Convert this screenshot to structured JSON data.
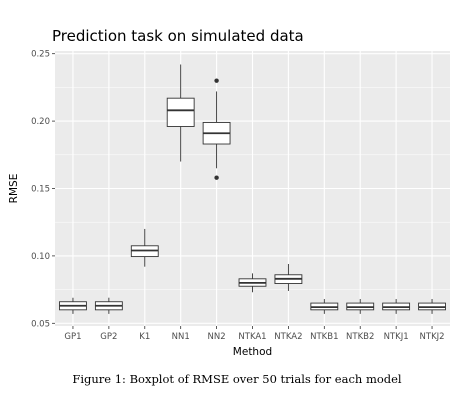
{
  "chart_data": {
    "type": "boxplot",
    "title": "Prediction task on simulated data",
    "xlabel": "Method",
    "ylabel": "RMSE",
    "ylim": [
      0.048,
      0.252
    ],
    "yticks": [
      0.05,
      0.1,
      0.15,
      0.2,
      0.25
    ],
    "ytick_labels": [
      "0.05",
      "0.10",
      "0.15",
      "0.20",
      "0.25"
    ],
    "grid": true,
    "categories": [
      "GP1",
      "GP2",
      "K1",
      "NN1",
      "NN2",
      "NTKA1",
      "NTKA2",
      "NTKB1",
      "NTKB2",
      "NTKJ1",
      "NTKJ2"
    ],
    "boxes": [
      {
        "whisker_low": 0.057,
        "q1": 0.06,
        "median": 0.063,
        "q3": 0.066,
        "whisker_high": 0.069,
        "outliers": []
      },
      {
        "whisker_low": 0.057,
        "q1": 0.06,
        "median": 0.063,
        "q3": 0.066,
        "whisker_high": 0.069,
        "outliers": []
      },
      {
        "whisker_low": 0.092,
        "q1": 0.0995,
        "median": 0.104,
        "q3": 0.1075,
        "whisker_high": 0.12,
        "outliers": []
      },
      {
        "whisker_low": 0.17,
        "q1": 0.196,
        "median": 0.208,
        "q3": 0.217,
        "whisker_high": 0.242,
        "outliers": []
      },
      {
        "whisker_low": 0.165,
        "q1": 0.183,
        "median": 0.191,
        "q3": 0.199,
        "whisker_high": 0.222,
        "outliers": [
          0.23,
          0.158
        ]
      },
      {
        "whisker_low": 0.073,
        "q1": 0.0775,
        "median": 0.08,
        "q3": 0.083,
        "whisker_high": 0.087,
        "outliers": []
      },
      {
        "whisker_low": 0.074,
        "q1": 0.0795,
        "median": 0.083,
        "q3": 0.086,
        "whisker_high": 0.094,
        "outliers": []
      },
      {
        "whisker_low": 0.057,
        "q1": 0.06,
        "median": 0.062,
        "q3": 0.065,
        "whisker_high": 0.068,
        "outliers": []
      },
      {
        "whisker_low": 0.057,
        "q1": 0.06,
        "median": 0.062,
        "q3": 0.065,
        "whisker_high": 0.068,
        "outliers": []
      },
      {
        "whisker_low": 0.057,
        "q1": 0.06,
        "median": 0.062,
        "q3": 0.065,
        "whisker_high": 0.068,
        "outliers": []
      },
      {
        "whisker_low": 0.057,
        "q1": 0.06,
        "median": 0.062,
        "q3": 0.065,
        "whisker_high": 0.068,
        "outliers": []
      }
    ],
    "panel_color": "#ebebeb",
    "grid_color": "#ffffff",
    "box_fill": "#ffffff",
    "line_color": "#333333"
  },
  "caption": "Figure 1: Boxplot of RMSE over 50 trials for each model"
}
